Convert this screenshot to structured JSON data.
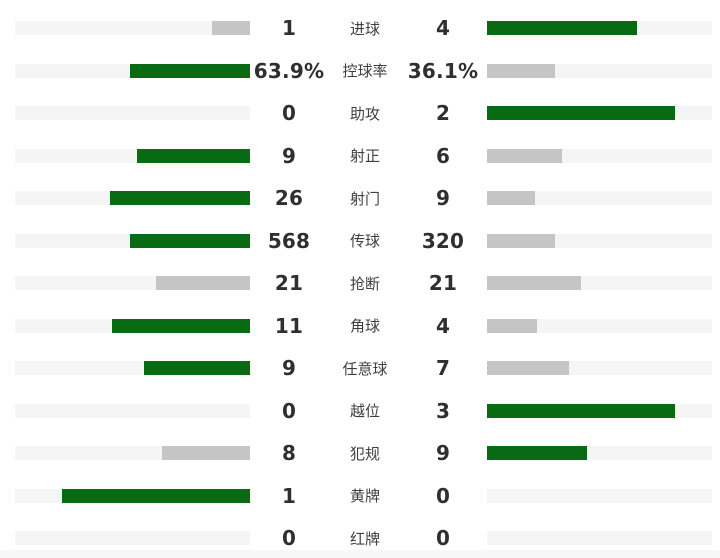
{
  "colors": {
    "lead_bar": "#086a12",
    "trail_bar": "#c5c5c5",
    "track": "#f5f5f5",
    "value_text": "#2f2f2f",
    "label_text": "#3f3f3f",
    "bottom_strip": "#f6f8f6"
  },
  "stats": {
    "rows": [
      {
        "label": "进球",
        "home": "1",
        "away": "4"
      },
      {
        "label": "控球率",
        "home": "63.9%",
        "away": "36.1%"
      },
      {
        "label": "助攻",
        "home": "0",
        "away": "2"
      },
      {
        "label": "射正",
        "home": "9",
        "away": "6"
      },
      {
        "label": "射门",
        "home": "26",
        "away": "9"
      },
      {
        "label": "传球",
        "home": "568",
        "away": "320"
      },
      {
        "label": "抢断",
        "home": "21",
        "away": "21"
      },
      {
        "label": "角球",
        "home": "11",
        "away": "4"
      },
      {
        "label": "任意球",
        "home": "9",
        "away": "7"
      },
      {
        "label": "越位",
        "home": "0",
        "away": "3"
      },
      {
        "label": "犯规",
        "home": "8",
        "away": "9"
      },
      {
        "label": "黄牌",
        "home": "1",
        "away": "0"
      },
      {
        "label": "红牌",
        "home": "0",
        "away": "0"
      }
    ]
  },
  "chart_data": {
    "type": "bar",
    "orientation": "horizontal-paired",
    "title": "",
    "categories": [
      "进球",
      "控球率",
      "助攻",
      "射正",
      "射门",
      "传球",
      "抢断",
      "角球",
      "任意球",
      "越位",
      "犯规",
      "黄牌",
      "红牌"
    ],
    "series": [
      {
        "name": "home",
        "values": [
          1,
          63.9,
          0,
          9,
          26,
          568,
          21,
          11,
          9,
          0,
          8,
          1,
          0
        ]
      },
      {
        "name": "away",
        "values": [
          4,
          36.1,
          2,
          6,
          9,
          320,
          21,
          4,
          7,
          3,
          9,
          0,
          0
        ]
      }
    ],
    "value_label_format": "raw, 控球率 shown as percent",
    "bar_scaling": "bar_length = value / (home + away) of that row; full length when opponent is 0",
    "color_rule": "larger value green, smaller or tied value gray, zero value no bar",
    "legend": "none",
    "grid": false
  }
}
